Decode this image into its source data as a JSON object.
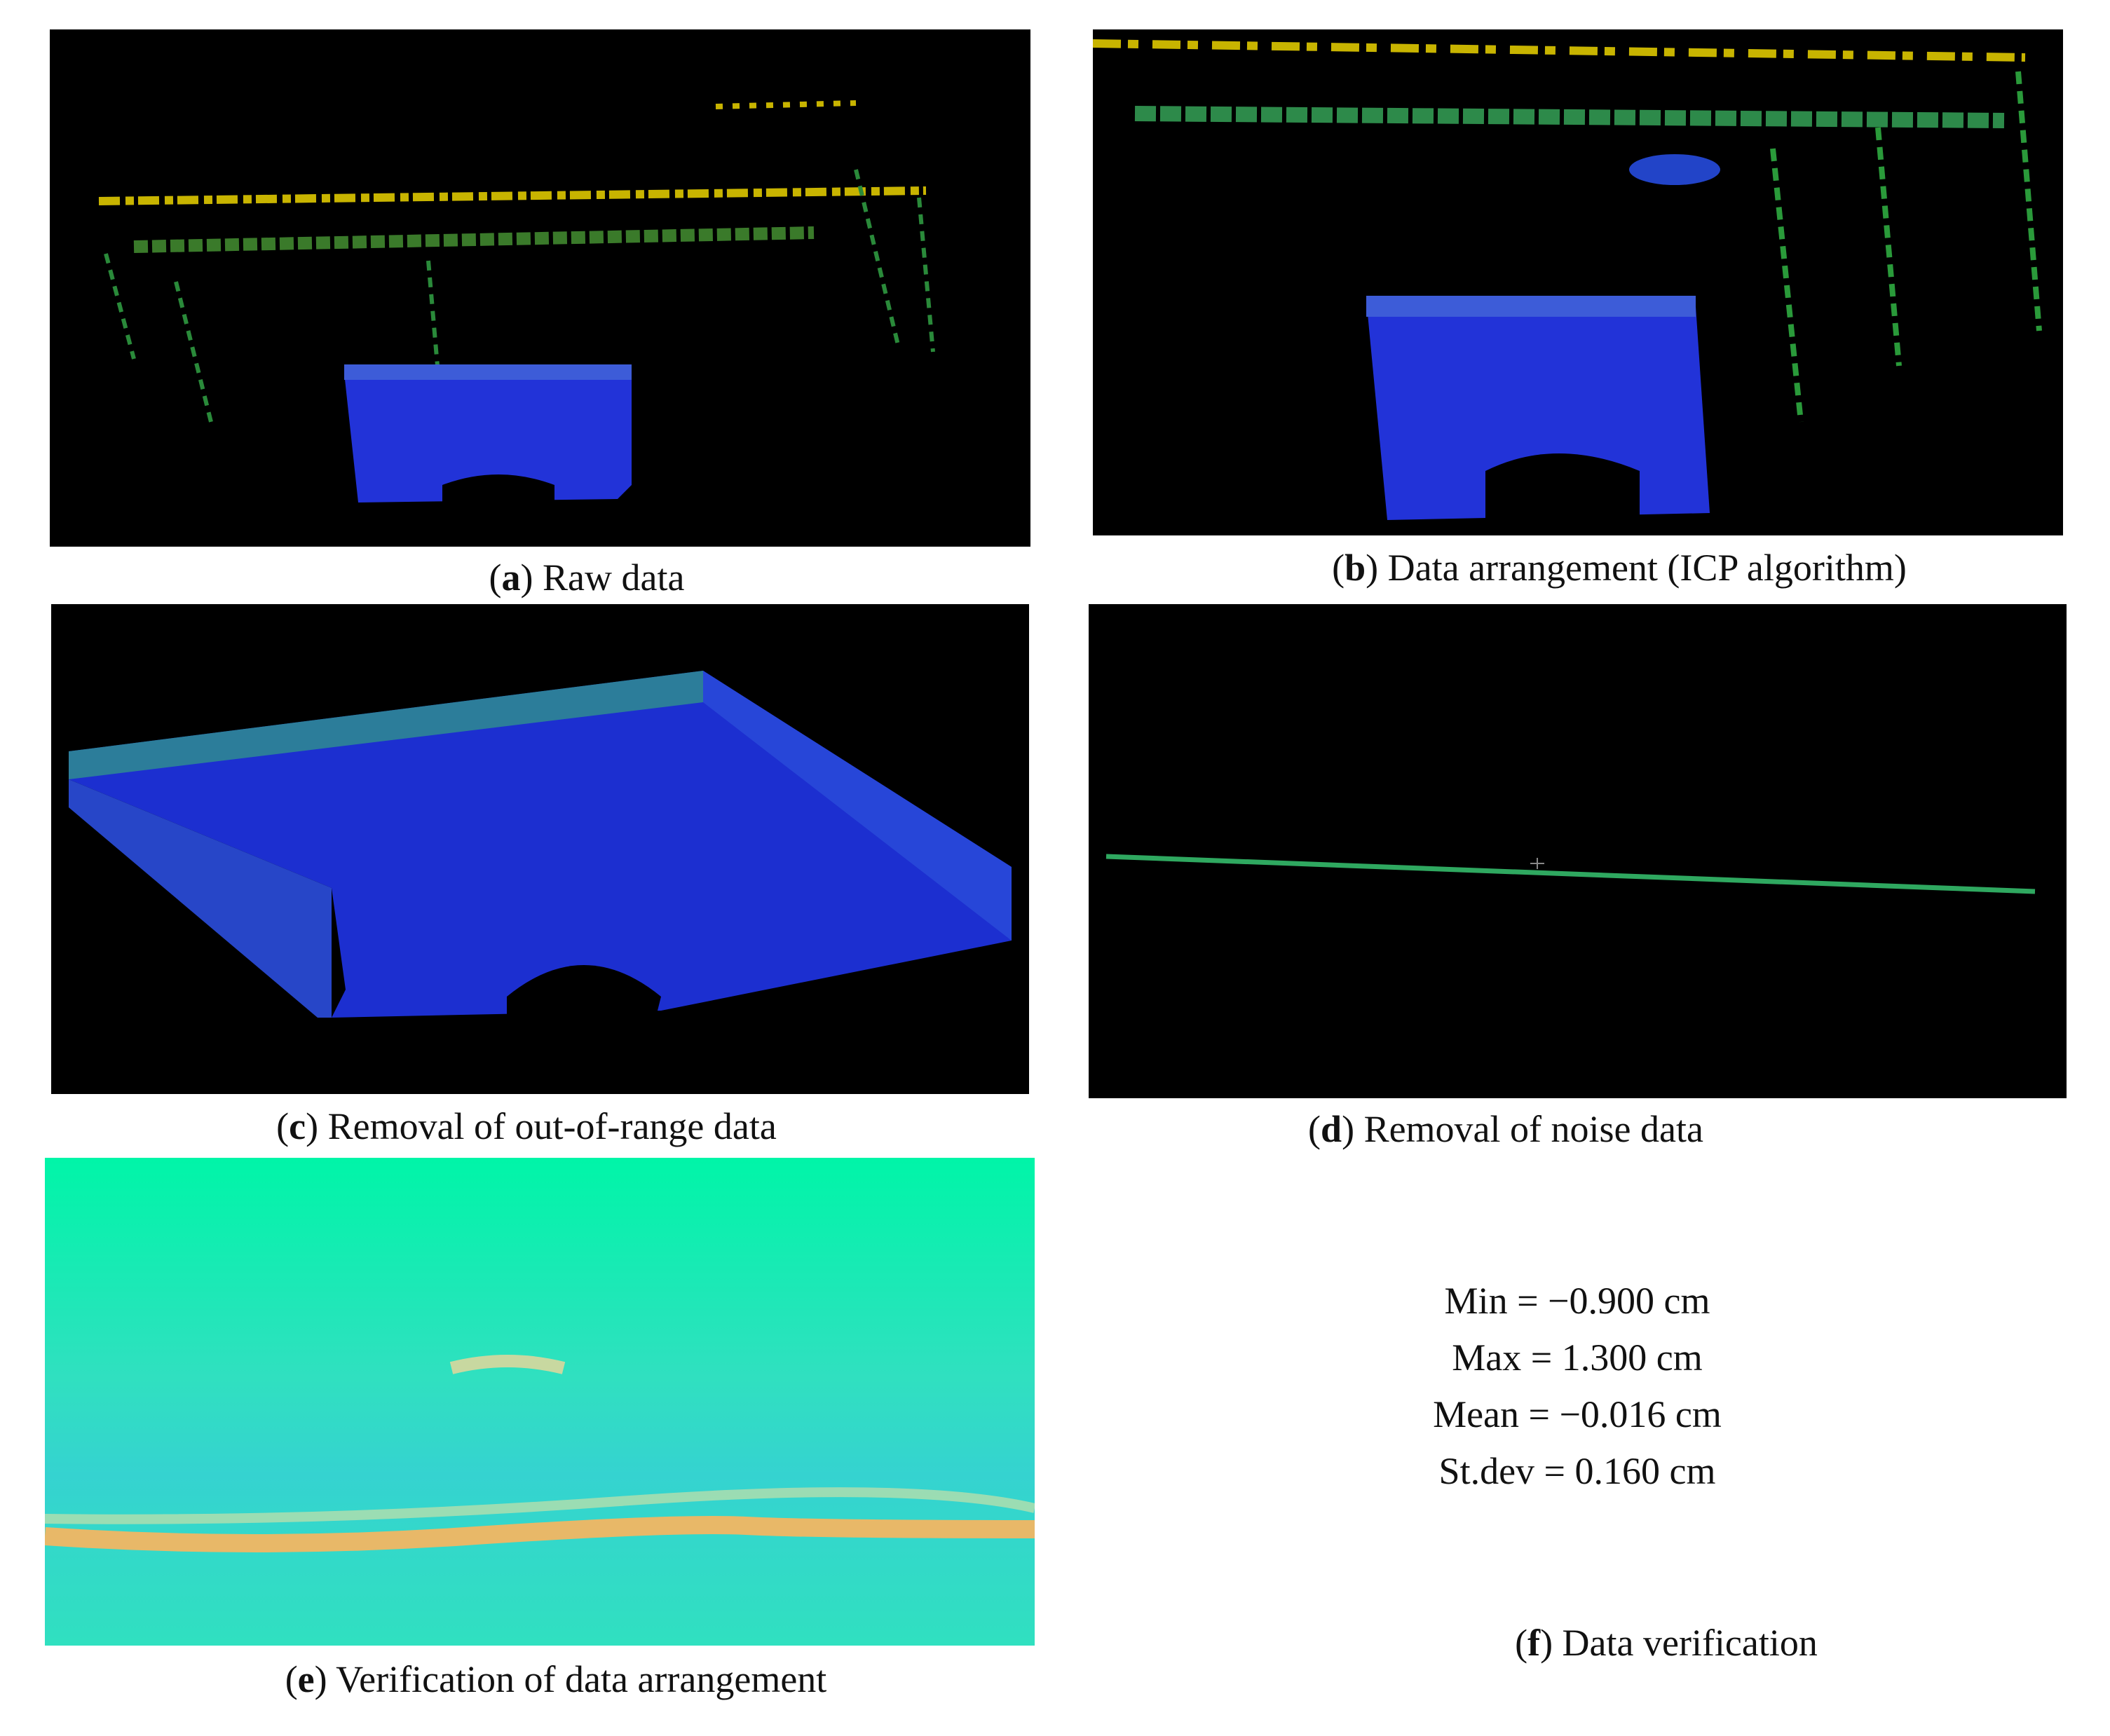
{
  "panels": [
    {
      "open": "(",
      "letter": "a",
      "rest": ") Raw data"
    },
    {
      "open": "(",
      "letter": "b",
      "rest": ") Data arrangement (ICP algorithm)"
    },
    {
      "open": "(",
      "letter": "c",
      "rest": ") Removal of out-of-range data"
    },
    {
      "open": "(",
      "letter": "d",
      "rest": ") Removal of noise data"
    },
    {
      "open": "(",
      "letter": "e",
      "rest": ") Verification of data arrangement"
    },
    {
      "open": "(",
      "letter": "f",
      "rest": ") Data verification"
    }
  ],
  "stats": [
    "Min = −0.900 cm",
    "Max = 1.300 cm",
    "Mean = −0.016 cm",
    "St.dev = 0.160 cm"
  ]
}
